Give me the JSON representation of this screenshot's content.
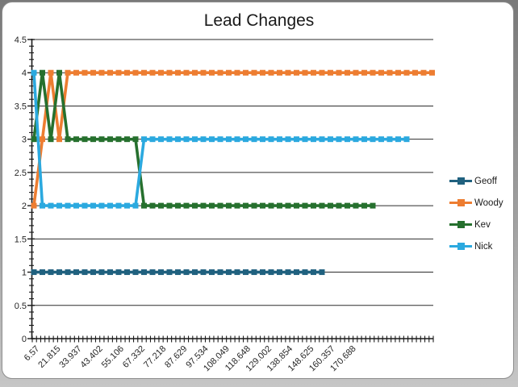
{
  "window": {
    "background": "#ffffff",
    "frame_border_color": "#8e8e8e"
  },
  "chart_data": {
    "type": "line",
    "title": "Lead Changes",
    "xlabel": "",
    "ylabel": "",
    "ylim": [
      0,
      4.5
    ],
    "y_tick_labels": [
      "0",
      "0.5",
      "1",
      "1.5",
      "2",
      "2.5",
      "3",
      "3.5",
      "4",
      "4.5"
    ],
    "y_tick_step": 0.5,
    "y_minor_tick_step": 0.1,
    "grid": "horizontal lines every 0.5, black, thin",
    "axis_color": "#1a1a1a",
    "x_tick_labels": [
      "6.57",
      "21.815",
      "33.937",
      "43.402",
      "55.106",
      "67.332",
      "77.218",
      "87.629",
      "97.534",
      "108.049",
      "118.648",
      "129.002",
      "138.854",
      "148.625",
      "160.357",
      "170.688"
    ],
    "x_label_rotation_deg": -45,
    "legend_position": "right",
    "marker": "square",
    "series": [
      {
        "name": "Geoff",
        "color": "#20617F",
        "values": [
          1,
          1,
          1,
          1,
          1,
          1,
          1,
          1,
          1,
          1,
          1,
          1,
          1,
          1,
          1,
          1,
          1,
          1,
          1,
          1,
          1,
          1,
          1,
          1,
          1,
          1,
          1,
          1,
          1,
          1,
          1,
          1,
          1,
          1,
          1
        ]
      },
      {
        "name": "Woody",
        "color": "#ED7D31",
        "values": [
          2,
          3,
          4,
          3,
          4,
          4,
          4,
          4,
          4,
          4,
          4,
          4,
          4,
          4,
          4,
          4,
          4,
          4,
          4,
          4,
          4,
          4,
          4,
          4,
          4,
          4,
          4,
          4,
          4,
          4,
          4,
          4,
          4,
          4,
          4,
          4,
          4,
          4,
          4,
          4,
          4,
          4,
          4,
          4,
          4,
          4,
          4,
          4
        ]
      },
      {
        "name": "Kev",
        "color": "#26702E",
        "values": [
          3,
          4,
          3,
          4,
          3,
          3,
          3,
          3,
          3,
          3,
          3,
          3,
          3,
          2,
          2,
          2,
          2,
          2,
          2,
          2,
          2,
          2,
          2,
          2,
          2,
          2,
          2,
          2,
          2,
          2,
          2,
          2,
          2,
          2,
          2,
          2,
          2,
          2,
          2,
          2,
          2
        ]
      },
      {
        "name": "Nick",
        "color": "#2BA9DF",
        "values": [
          4,
          2,
          2,
          2,
          2,
          2,
          2,
          2,
          2,
          2,
          2,
          2,
          2,
          3,
          3,
          3,
          3,
          3,
          3,
          3,
          3,
          3,
          3,
          3,
          3,
          3,
          3,
          3,
          3,
          3,
          3,
          3,
          3,
          3,
          3,
          3,
          3,
          3,
          3,
          3,
          3,
          3,
          3,
          3,
          3
        ]
      }
    ]
  }
}
